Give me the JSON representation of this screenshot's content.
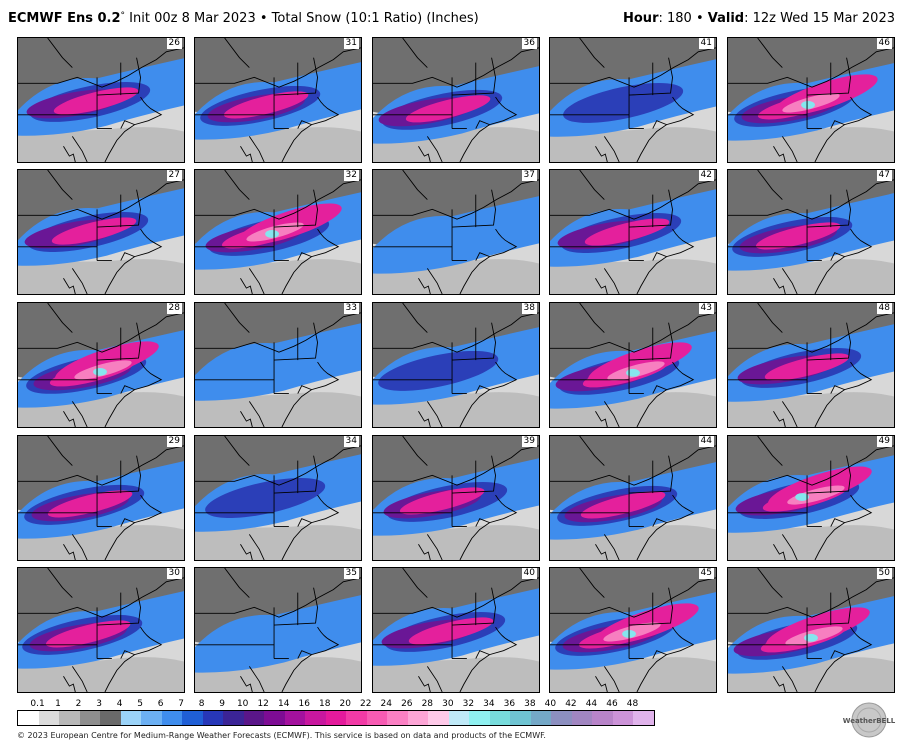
{
  "header": {
    "model": "ECMWF Ens 0.2",
    "degree": "°",
    "init_text": " Init 00z 8 Mar 2023 • Total Snow (10:1 Ratio) (Inches)",
    "hour_label": "Hour",
    "hour_value": ": 180 • ",
    "valid_label": "Valid",
    "valid_value": ": 12z Wed 15 Mar 2023"
  },
  "members": [
    [
      "26",
      "31",
      "36",
      "41",
      "46"
    ],
    [
      "27",
      "32",
      "37",
      "42",
      "47"
    ],
    [
      "28",
      "33",
      "38",
      "43",
      "48"
    ],
    [
      "29",
      "34",
      "39",
      "44",
      "49"
    ],
    [
      "30",
      "35",
      "40",
      "45",
      "50"
    ]
  ],
  "legend": {
    "labels": [
      "0.1",
      "1",
      "2",
      "3",
      "4",
      "5",
      "6",
      "7",
      "8",
      "9",
      "10",
      "12",
      "14",
      "16",
      "18",
      "20",
      "22",
      "24",
      "26",
      "28",
      "30",
      "32",
      "34",
      "36",
      "38",
      "40",
      "42",
      "44",
      "46",
      "48"
    ],
    "colors": [
      "#ffffff",
      "#dcdcdc",
      "#b8b8b8",
      "#8e8e8e",
      "#6a6a6a",
      "#9bd3f8",
      "#6cb0f3",
      "#3f8ded",
      "#1f5fd6",
      "#2737b8",
      "#3b2496",
      "#5a1689",
      "#7d0c94",
      "#a3119e",
      "#c8179f",
      "#e41a9c",
      "#f23aa6",
      "#f75bb3",
      "#fb80c4",
      "#fda5d6",
      "#fec9e8",
      "#bfe9f7",
      "#8ff0f0",
      "#78dcdc",
      "#6fc4d2",
      "#74a8c7",
      "#8c8fc0",
      "#a186c1",
      "#b884c9",
      "#cc93d8",
      "#e0b3eb"
    ]
  },
  "footer": "© 2023 European Centre for Medium-Range Weather Forecasts (ECMWF). This service is based on data and products of the ECMWF.",
  "logo": {
    "text": "WeatherBELL"
  },
  "map_colors": {
    "none": "#d8d8d8",
    "light": "#a8a8a8",
    "gray": "#6f6f6f",
    "blue": "#3f8ded",
    "navy": "#2b3fb8",
    "purple": "#6a1796",
    "magenta": "#e4209c",
    "pink": "#f77fc0",
    "cyan": "#86e6ee",
    "lines": "#000000"
  },
  "intensity": [
    [
      3,
      3,
      3,
      2,
      4
    ],
    [
      3,
      4,
      1,
      3,
      3
    ],
    [
      4,
      1,
      2,
      4,
      3
    ],
    [
      3,
      2,
      3,
      3,
      4
    ],
    [
      3,
      1,
      3,
      4,
      4
    ]
  ]
}
